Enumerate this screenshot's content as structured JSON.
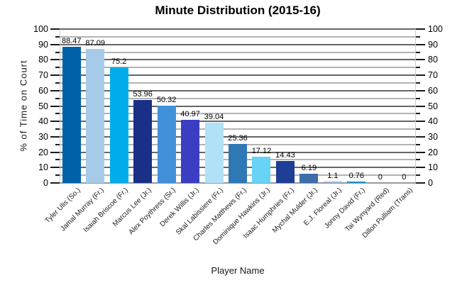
{
  "title": "Minute Distribution (2015-16)",
  "chart_data": {
    "type": "bar",
    "title": "Minute Distribution (2015-16)",
    "xlabel": "Player Name",
    "ylabel": "% of Time on Court",
    "ylim": [
      0,
      100
    ],
    "y_major_tick_step": 10,
    "y_minor_tick_step": 5,
    "grid": "horizontal-major-and-minor",
    "legend": "none",
    "categories": [
      "Tyler Ulis (So.)",
      "Jamal Murray (Fr.)",
      "Isaiah Briscoe (Fr.)",
      "Marcus Lee (Jr.)",
      "Alex Poythress (Sr.)",
      "Derek Willis (Jr.)",
      "Skal Labissiere (Fr.)",
      "Charles Matthews (Fr.)",
      "Dominique Hawkins (Jr.)",
      "Isaac Humphries (Fr.)",
      "Mychal Mulder (Jr.)",
      "E.J. Floreal (Jr.)",
      "Jonny David (Fr.)",
      "Tai Wynyard (Red)",
      "Dillon Pulliam (Trans)"
    ],
    "values": [
      88.47,
      87.09,
      75.2,
      53.96,
      50.32,
      40.97,
      39.04,
      25.36,
      17.12,
      14.43,
      6.19,
      1.1,
      0.76,
      0,
      0
    ],
    "value_labels": [
      "88.47",
      "87.09",
      "75.2",
      "53.96",
      "50.32",
      "40.97",
      "39.04",
      "25.36",
      "17.12",
      "14.43",
      "6.19",
      "1.1",
      "0.76",
      "0",
      "0"
    ],
    "bar_colors": [
      "#0061a9",
      "#a6cbe9",
      "#00adea",
      "#1a3086",
      "#4191da",
      "#3b3ec3",
      "#b1e1f6",
      "#2f78b6",
      "#68d3f6",
      "#1e3f95",
      "#3d6ea7",
      "#9db6d7",
      "#1f90d0",
      "none",
      "none"
    ],
    "y_tick_labels": [
      "0",
      "10",
      "20",
      "30",
      "40",
      "50",
      "60",
      "70",
      "80",
      "90",
      "100"
    ]
  },
  "style": {
    "major_grid_color": "#666666",
    "minor_grid_color": "#b3b3b3",
    "axis_line_color": "#999999",
    "tick_color": "#1a1a1a",
    "background": "#ffffff"
  }
}
